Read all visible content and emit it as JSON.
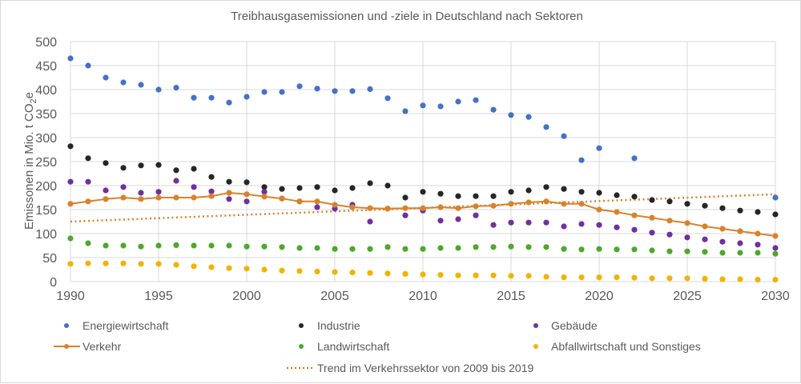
{
  "chart_data": {
    "type": "scatter",
    "title": "Treibhausgasemissionen und -ziele in Deutschland nach Sektoren",
    "xlabel": "",
    "ylabel": "Emissonen in Mio. t CO2e",
    "ylabel_parts": {
      "main": "Emissonen in Mio. t CO",
      "sub": "2",
      "tail": "e"
    },
    "xlim": [
      1990,
      2030
    ],
    "ylim": [
      0,
      500
    ],
    "x_ticks": [
      1990,
      1995,
      2000,
      2005,
      2010,
      2015,
      2020,
      2025,
      2030
    ],
    "y_ticks": [
      0,
      50,
      100,
      150,
      200,
      250,
      300,
      350,
      400,
      450,
      500
    ],
    "grid": true,
    "legend_position": "bottom",
    "series": [
      {
        "name": "Energiewirtschaft",
        "style": "markers",
        "color": "#4472c4",
        "x": [
          1990,
          1991,
          1992,
          1993,
          1994,
          1995,
          1996,
          1997,
          1998,
          1999,
          2000,
          2001,
          2002,
          2003,
          2004,
          2005,
          2006,
          2007,
          2008,
          2009,
          2010,
          2011,
          2012,
          2013,
          2014,
          2015,
          2016,
          2017,
          2018,
          2019,
          2020,
          2022,
          2030
        ],
        "values": [
          465,
          450,
          425,
          415,
          410,
          400,
          404,
          383,
          383,
          373,
          385,
          395,
          395,
          407,
          402,
          397,
          397,
          401,
          382,
          355,
          367,
          365,
          375,
          378,
          358,
          347,
          343,
          322,
          303,
          253,
          278,
          257,
          175
        ]
      },
      {
        "name": "Industrie",
        "style": "markers",
        "color": "#262626",
        "x": [
          1990,
          1991,
          1992,
          1993,
          1994,
          1995,
          1996,
          1997,
          1998,
          1999,
          2000,
          2001,
          2002,
          2003,
          2004,
          2005,
          2006,
          2007,
          2008,
          2009,
          2010,
          2011,
          2012,
          2013,
          2014,
          2015,
          2016,
          2017,
          2018,
          2019,
          2020,
          2021,
          2022,
          2023,
          2024,
          2025,
          2026,
          2027,
          2028,
          2029,
          2030
        ],
        "values": [
          282,
          257,
          247,
          237,
          242,
          243,
          232,
          235,
          218,
          208,
          207,
          197,
          193,
          195,
          197,
          190,
          195,
          205,
          200,
          175,
          187,
          183,
          178,
          178,
          178,
          187,
          190,
          197,
          193,
          187,
          185,
          180,
          177,
          170,
          167,
          162,
          158,
          153,
          148,
          145,
          140
        ]
      },
      {
        "name": "Gebäude",
        "style": "markers",
        "color": "#7030a0",
        "x": [
          1990,
          1991,
          1992,
          1993,
          1994,
          1995,
          1996,
          1997,
          1998,
          1999,
          2000,
          2001,
          2002,
          2003,
          2004,
          2005,
          2006,
          2007,
          2008,
          2009,
          2010,
          2011,
          2012,
          2013,
          2014,
          2015,
          2016,
          2017,
          2018,
          2019,
          2020,
          2021,
          2022,
          2023,
          2024,
          2025,
          2026,
          2027,
          2028,
          2029,
          2030
        ],
        "values": [
          208,
          208,
          190,
          197,
          185,
          187,
          210,
          197,
          188,
          172,
          167,
          187,
          173,
          167,
          155,
          152,
          160,
          125,
          152,
          138,
          148,
          127,
          130,
          138,
          118,
          123,
          123,
          123,
          115,
          120,
          118,
          113,
          108,
          102,
          98,
          92,
          88,
          83,
          80,
          77,
          70
        ]
      },
      {
        "name": "Verkehr",
        "style": "line-markers",
        "color": "#d9822b",
        "x": [
          1990,
          1991,
          1992,
          1993,
          1994,
          1995,
          1996,
          1997,
          1998,
          1999,
          2000,
          2001,
          2002,
          2003,
          2004,
          2005,
          2006,
          2007,
          2008,
          2009,
          2010,
          2011,
          2012,
          2013,
          2014,
          2015,
          2016,
          2017,
          2018,
          2019,
          2020,
          2021,
          2022,
          2023,
          2024,
          2025,
          2026,
          2027,
          2028,
          2029,
          2030
        ],
        "values": [
          162,
          167,
          172,
          175,
          172,
          175,
          175,
          175,
          178,
          185,
          182,
          177,
          173,
          167,
          167,
          160,
          155,
          153,
          152,
          153,
          153,
          155,
          153,
          157,
          158,
          162,
          165,
          167,
          162,
          162,
          150,
          145,
          138,
          133,
          127,
          122,
          115,
          110,
          105,
          100,
          95
        ]
      },
      {
        "name": "Landwirtschaft",
        "style": "markers",
        "color": "#4ea72e",
        "x": [
          1990,
          1991,
          1992,
          1993,
          1994,
          1995,
          1996,
          1997,
          1998,
          1999,
          2000,
          2001,
          2002,
          2003,
          2004,
          2005,
          2006,
          2007,
          2008,
          2009,
          2010,
          2011,
          2012,
          2013,
          2014,
          2015,
          2016,
          2017,
          2018,
          2019,
          2020,
          2021,
          2022,
          2023,
          2024,
          2025,
          2026,
          2027,
          2028,
          2029,
          2030
        ],
        "values": [
          90,
          80,
          75,
          75,
          73,
          75,
          76,
          75,
          75,
          75,
          73,
          73,
          72,
          70,
          70,
          68,
          68,
          68,
          72,
          68,
          68,
          70,
          70,
          72,
          72,
          73,
          72,
          72,
          68,
          67,
          68,
          67,
          67,
          65,
          63,
          63,
          62,
          60,
          60,
          60,
          58
        ]
      },
      {
        "name": "Abfallwirtschaft und Sonstiges",
        "style": "markers",
        "color": "#f0b400",
        "x": [
          1990,
          1991,
          1992,
          1993,
          1994,
          1995,
          1996,
          1997,
          1998,
          1999,
          2000,
          2001,
          2002,
          2003,
          2004,
          2005,
          2006,
          2007,
          2008,
          2009,
          2010,
          2011,
          2012,
          2013,
          2014,
          2015,
          2016,
          2017,
          2018,
          2019,
          2020,
          2021,
          2022,
          2023,
          2024,
          2025,
          2026,
          2027,
          2028,
          2029,
          2030
        ],
        "values": [
          37,
          38,
          38,
          38,
          37,
          37,
          35,
          32,
          30,
          28,
          27,
          25,
          23,
          22,
          21,
          20,
          19,
          18,
          17,
          16,
          15,
          14,
          13,
          13,
          13,
          12,
          12,
          10,
          9,
          9,
          9,
          9,
          8,
          7,
          7,
          7,
          6,
          5,
          5,
          4,
          4
        ]
      },
      {
        "name": "Trend im Verkehrssektor von 2009 bis 2019",
        "style": "dotted-line",
        "color": "#d9822b",
        "x": [
          1990,
          2030
        ],
        "values": [
          125,
          182
        ]
      }
    ]
  },
  "legend": [
    {
      "label": "Energiewirtschaft",
      "symbol": "dot",
      "color": "#4472c4"
    },
    {
      "label": "Industrie",
      "symbol": "dot",
      "color": "#262626"
    },
    {
      "label": "Gebäude",
      "symbol": "dot",
      "color": "#7030a0"
    },
    {
      "label": "Verkehr",
      "symbol": "line-dot",
      "color": "#d9822b"
    },
    {
      "label": "Landwirtschaft",
      "symbol": "dot",
      "color": "#4ea72e"
    },
    {
      "label": "Abfallwirtschaft und Sonstiges",
      "symbol": "dot",
      "color": "#f0b400"
    },
    {
      "label": "Trend im Verkehrssektor von 2009 bis 2019",
      "symbol": "dotted",
      "color": "#d9822b"
    }
  ]
}
